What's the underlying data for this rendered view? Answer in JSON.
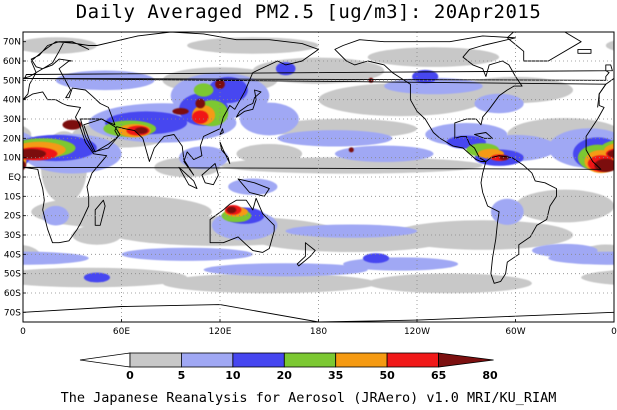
{
  "title": "Daily Averaged PM2.5 [ug/m3]: 20Apr2015",
  "footer": "The Japanese Reanalysis for Aerosol (JRAero) v1.0 MRI/KU_RIAM",
  "map": {
    "projection": "cylindrical",
    "lon_range": [
      0,
      360
    ],
    "lat_range": [
      -75,
      75
    ],
    "lat_ticks": [
      {
        "lat": 70,
        "label": "70N"
      },
      {
        "lat": 60,
        "label": "60N"
      },
      {
        "lat": 50,
        "label": "50N"
      },
      {
        "lat": 40,
        "label": "40N"
      },
      {
        "lat": 30,
        "label": "30N"
      },
      {
        "lat": 20,
        "label": "20N"
      },
      {
        "lat": 10,
        "label": "10N"
      },
      {
        "lat": 0,
        "label": "EQ"
      },
      {
        "lat": -10,
        "label": "10S"
      },
      {
        "lat": -20,
        "label": "20S"
      },
      {
        "lat": -30,
        "label": "30S"
      },
      {
        "lat": -40,
        "label": "40S"
      },
      {
        "lat": -50,
        "label": "50S"
      },
      {
        "lat": -60,
        "label": "60S"
      },
      {
        "lat": -70,
        "label": "70S"
      }
    ],
    "lon_ticks": [
      {
        "lon": 0,
        "label": "0"
      },
      {
        "lon": 60,
        "label": "60E"
      },
      {
        "lon": 120,
        "label": "120E"
      },
      {
        "lon": 180,
        "label": "180"
      },
      {
        "lon": 240,
        "label": "120W"
      },
      {
        "lon": 300,
        "label": "60W"
      },
      {
        "lon": 360,
        "label": "0"
      }
    ],
    "gridlines": "dotted",
    "colors": {
      "c5": "#c8c8c8",
      "c10": "#a0a8f4",
      "c20": "#4646f0",
      "c35": "#7cc832",
      "c50": "#f59a12",
      "c65": "#f01818",
      "c80": "#7c1010",
      "coast": "#000000"
    }
  },
  "colorbar": {
    "boundaries": [
      "0",
      "5",
      "10",
      "20",
      "35",
      "50",
      "65",
      "80"
    ],
    "colors": [
      "#ffffff",
      "#c8c8c8",
      "#a0a8f4",
      "#4646f0",
      "#7cc832",
      "#f59a12",
      "#f01818",
      "#7c1010"
    ],
    "extend": "both"
  }
}
